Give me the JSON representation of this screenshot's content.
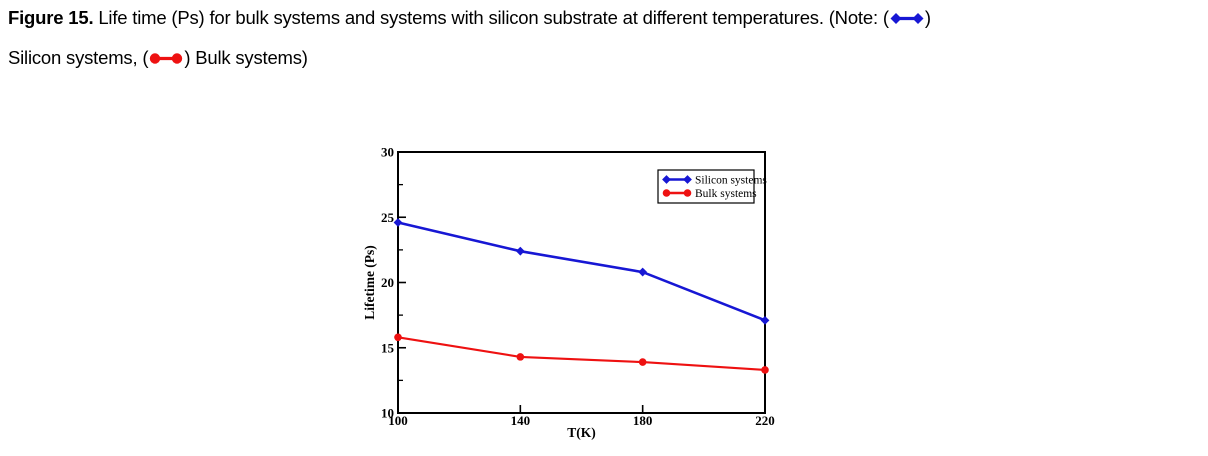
{
  "caption": {
    "figure_label": "Figure 15.",
    "line1_text": " Life time (Ps) for bulk systems and systems with silicon substrate at different temperatures. (Note: (",
    "line1_close": ")",
    "line2_pre": "Silicon systems, (",
    "line2_post": ") Bulk systems)"
  },
  "colors": {
    "silicon": "#1717d4",
    "bulk": "#ee1111",
    "axis": "#000000",
    "background": "#ffffff"
  },
  "chart_data": {
    "type": "line",
    "title": "",
    "xlabel": "T(K)",
    "ylabel": "Lifetime (Ps)",
    "x": [
      100,
      140,
      180,
      220
    ],
    "xlim": [
      100,
      220
    ],
    "ylim": [
      10,
      30
    ],
    "x_ticks": [
      100,
      140,
      180,
      220
    ],
    "y_ticks_major": [
      10,
      15,
      20,
      25,
      30
    ],
    "y_ticks_minor": [
      12.5,
      17.5,
      22.5,
      27.5
    ],
    "grid": false,
    "legend_position": "top-right",
    "legend": [
      "Silicon systems",
      "Bulk systems"
    ],
    "series": [
      {
        "name": "Silicon systems",
        "color": "#1717d4",
        "marker": "diamond",
        "values": [
          24.6,
          22.4,
          20.8,
          17.1
        ]
      },
      {
        "name": "Bulk systems",
        "color": "#ee1111",
        "marker": "circle",
        "values": [
          15.8,
          14.3,
          13.9,
          13.3
        ]
      }
    ]
  }
}
